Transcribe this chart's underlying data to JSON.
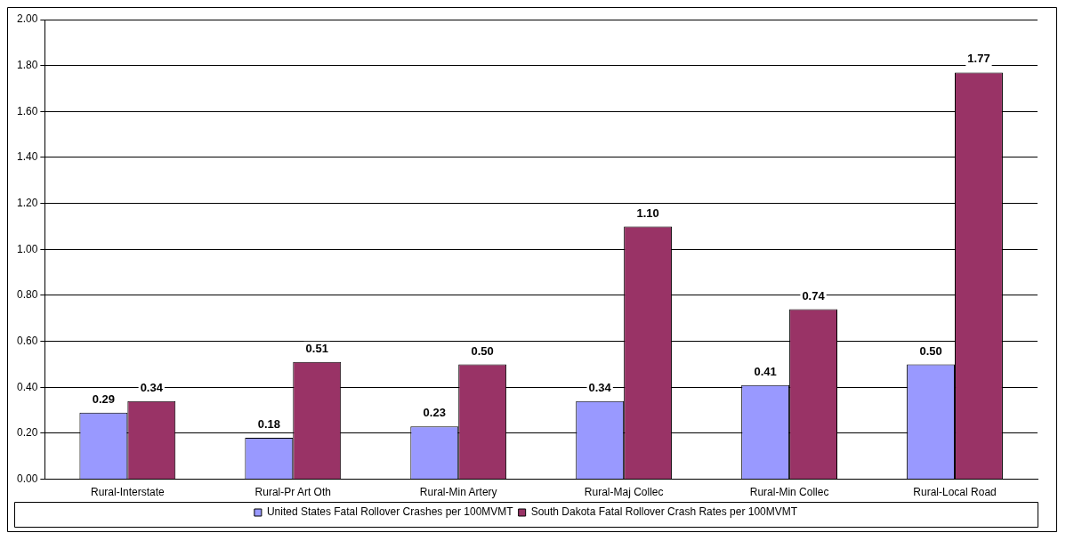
{
  "chart_data": {
    "type": "bar",
    "categories": [
      "Rural-Interstate",
      "Rural-Pr Art Oth",
      "Rural-Min Artery",
      "Rural-Maj Collec",
      "Rural-Min Collec",
      "Rural-Local Road"
    ],
    "series": [
      {
        "name": "United States Fatal Rollover Crashes per 100MVMT",
        "color": "#9999ff",
        "values": [
          0.29,
          0.18,
          0.23,
          0.34,
          0.41,
          0.5
        ],
        "value_labels": [
          "0.29",
          "0.18",
          "0.23",
          "0.34",
          "0.41",
          "0.50"
        ]
      },
      {
        "name": "South Dakota Fatal Rollover Crash Rates per 100MVMT",
        "color": "#993366",
        "values": [
          0.34,
          0.51,
          0.5,
          1.1,
          0.74,
          1.77
        ],
        "value_labels": [
          "0.34",
          "0.51",
          "0.50",
          "1.10",
          "0.74",
          "1.77"
        ]
      }
    ],
    "ylim": [
      0,
      2
    ],
    "yticks": [
      {
        "value": 0,
        "label": "0.00"
      },
      {
        "value": 0.2,
        "label": "0.20"
      },
      {
        "value": 0.4,
        "label": "0.40"
      },
      {
        "value": 0.6,
        "label": "0.60"
      },
      {
        "value": 0.8,
        "label": "0.80"
      },
      {
        "value": 1,
        "label": "1.00"
      },
      {
        "value": 1.2,
        "label": "1.20"
      },
      {
        "value": 1.4,
        "label": "1.40"
      },
      {
        "value": 1.6,
        "label": "1.60"
      },
      {
        "value": 1.8,
        "label": "1.80"
      },
      {
        "value": 2,
        "label": "2.00"
      }
    ],
    "grid": "y",
    "legend": "bottom"
  }
}
